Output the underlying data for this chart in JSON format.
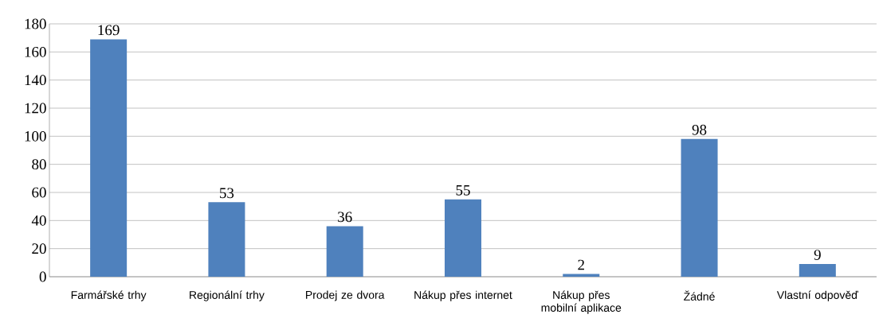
{
  "chart_data": {
    "type": "bar",
    "categories": [
      "Farmářské trhy",
      "Regionální trhy",
      "Prodej ze dvora",
      "Nákup přes internet",
      "Nákup přes mobilní aplikace",
      "Žádné",
      "Vlastní odpověď"
    ],
    "values": [
      169,
      53,
      36,
      55,
      2,
      98,
      9
    ],
    "color": "#4f81bd",
    "ylim": [
      0,
      180
    ],
    "yticks": [
      0,
      20,
      40,
      60,
      80,
      100,
      120,
      140,
      160,
      180
    ],
    "grid": "y",
    "data_labels": true
  }
}
